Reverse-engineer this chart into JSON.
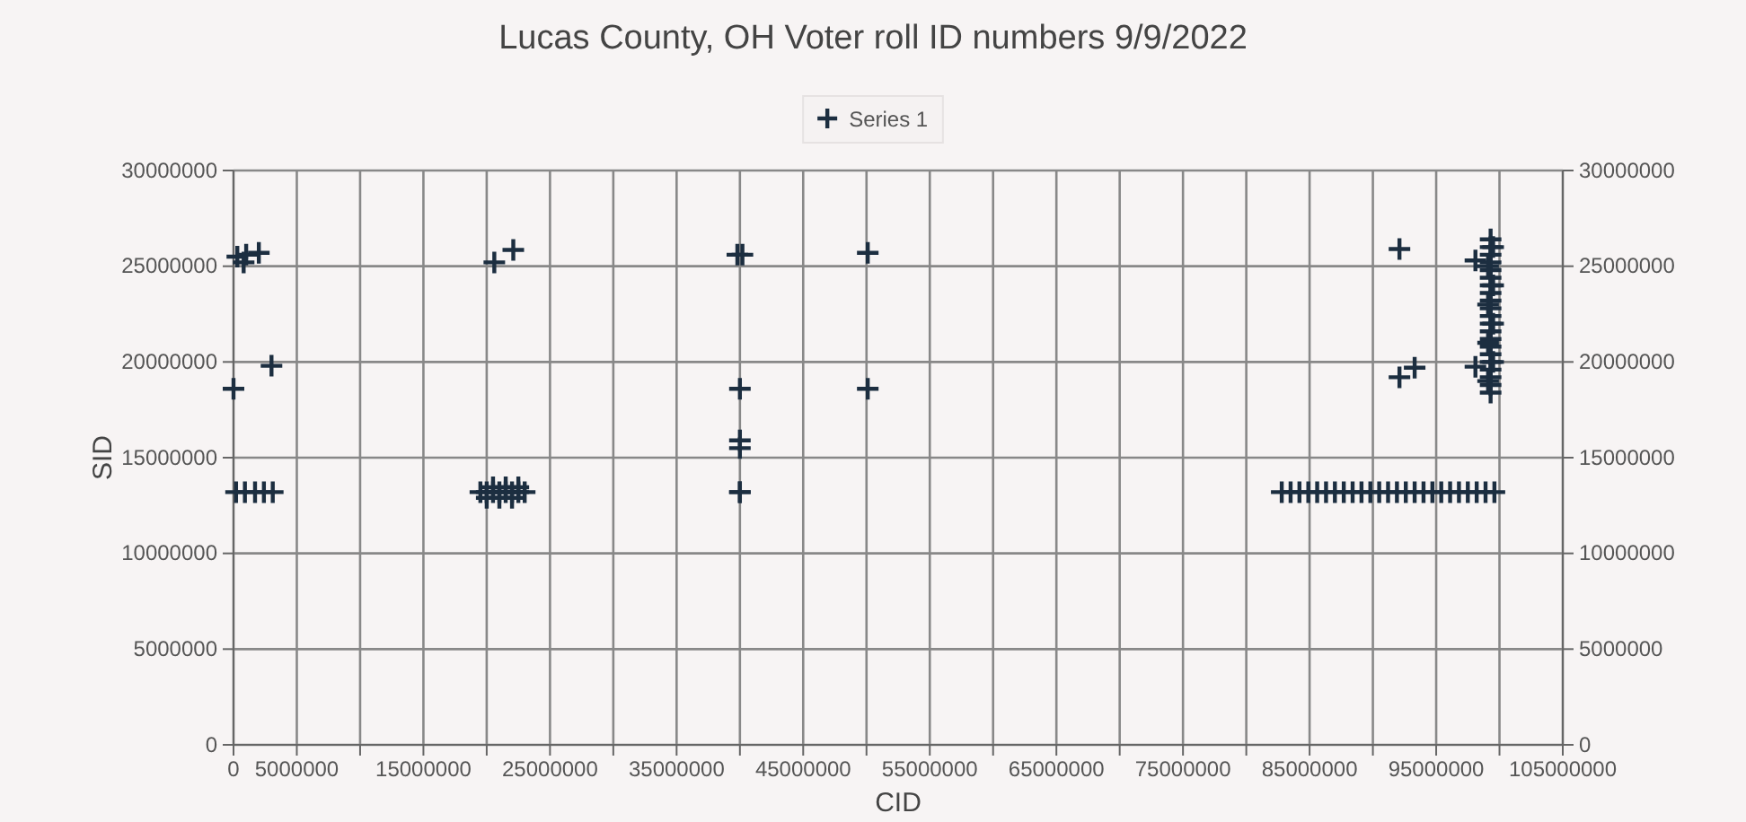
{
  "chart_data": {
    "type": "scatter",
    "title": "Lucas County, OH Voter roll ID numbers 9/9/2022",
    "xlabel": "CID",
    "ylabel": "SID",
    "marker": "cross",
    "grid": true,
    "legend": "top",
    "xlim": [
      0,
      105000000
    ],
    "xticks": [
      0,
      5000000,
      {
        "value": 10000000,
        "label": null
      },
      15000000,
      {
        "value": 20000000,
        "label": null
      },
      25000000,
      {
        "value": 30000000,
        "label": null
      },
      35000000,
      {
        "value": 40000000,
        "label": null
      },
      45000000,
      {
        "value": 50000000,
        "label": null
      },
      55000000,
      {
        "value": 60000000,
        "label": null
      },
      65000000,
      {
        "value": 70000000,
        "label": null
      },
      75000000,
      {
        "value": 80000000,
        "label": null
      },
      85000000,
      {
        "value": 90000000,
        "label": null
      },
      95000000,
      {
        "value": 100000000,
        "label": null
      },
      105000000
    ],
    "ylim": [
      0,
      30000000
    ],
    "yticks": [
      0,
      5000000,
      10000000,
      15000000,
      20000000,
      25000000,
      30000000
    ],
    "y2lim": [
      0,
      30000000
    ],
    "y2ticks": [
      0,
      5000000,
      10000000,
      15000000,
      20000000,
      25000000,
      30000000
    ],
    "series": [
      {
        "name": "Series 1",
        "color": "#1c2e40",
        "x": [
          300000,
          800000,
          1000000,
          2000000,
          3000000,
          0,
          200000,
          900000,
          1700000,
          2400000,
          3100000,
          20600000,
          22100000,
          19500000,
          20000000,
          20500000,
          21000000,
          21500000,
          22000000,
          22500000,
          23000000,
          20000000,
          21000000,
          22000000,
          20500000,
          21500000,
          22500000,
          39800000,
          40200000,
          50100000,
          40000000,
          50100000,
          40000000,
          40000000,
          40000000,
          40000000,
          92100000,
          98100000,
          92100000,
          93300000,
          98100000,
          82800000,
          83500000,
          84200000,
          84900000,
          85600000,
          86300000,
          87000000,
          87700000,
          88400000,
          89100000,
          89800000,
          90500000,
          91200000,
          91900000,
          92600000,
          93300000,
          94000000,
          94700000,
          95400000,
          96100000,
          96800000,
          97500000,
          98200000,
          98900000,
          99600000,
          99300000,
          99300000,
          99300000,
          99300000,
          99300000,
          99300000,
          99300000,
          99300000,
          99300000,
          99300000,
          99300000,
          99300000,
          99300000,
          99300000,
          99300000,
          99300000,
          99300000,
          99300000,
          99300000,
          99300000,
          99300000,
          99100000,
          99500000,
          99100000,
          99500000,
          99100000,
          99500000,
          99100000,
          99500000
        ],
        "values": [
          25500000,
          25200000,
          25600000,
          25700000,
          19800000,
          18600000,
          13200000,
          13200000,
          13200000,
          13200000,
          13200000,
          25200000,
          25850000,
          13200000,
          13200000,
          13200000,
          13200000,
          13200000,
          13200000,
          13200000,
          13200000,
          12900000,
          12900000,
          12900000,
          13450000,
          13450000,
          13450000,
          25600000,
          25600000,
          25700000,
          18600000,
          18600000,
          15500000,
          15900000,
          13200000,
          13200000,
          25900000,
          25300000,
          19200000,
          19700000,
          19750000,
          13200000,
          13200000,
          13200000,
          13200000,
          13200000,
          13200000,
          13200000,
          13200000,
          13200000,
          13200000,
          13200000,
          13200000,
          13200000,
          13200000,
          13200000,
          13200000,
          13200000,
          13200000,
          13200000,
          13200000,
          13200000,
          13200000,
          13200000,
          13200000,
          13200000,
          18400000,
          18800000,
          19200000,
          19600000,
          20000000,
          20400000,
          20800000,
          21200000,
          21600000,
          22000000,
          22400000,
          22800000,
          23200000,
          23600000,
          24000000,
          24400000,
          24800000,
          25200000,
          25600000,
          26000000,
          26400000,
          19000000,
          20000000,
          21000000,
          22000000,
          23000000,
          24000000,
          25000000,
          26000000
        ]
      }
    ]
  }
}
